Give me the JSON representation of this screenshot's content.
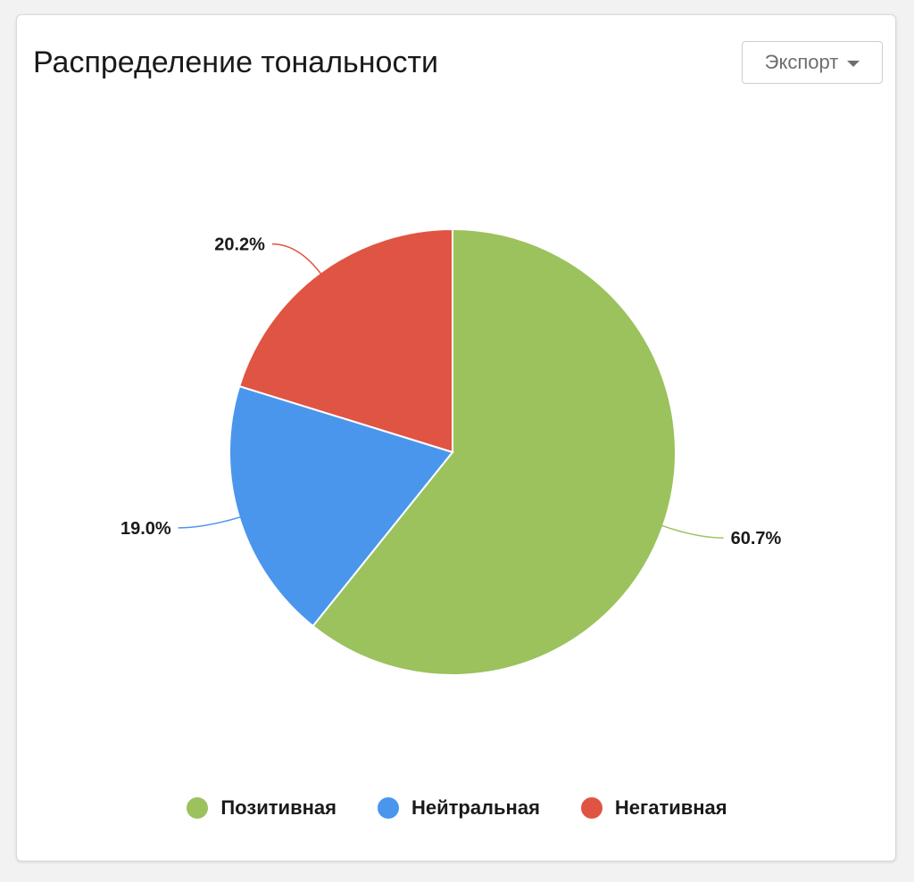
{
  "card": {
    "title": "Распределение тональности",
    "export_label": "Экспорт",
    "export_icon": "chevron-down-icon"
  },
  "chart_data": {
    "type": "pie",
    "title": "Распределение тональности",
    "categories": [
      "Позитивная",
      "Нейтральная",
      "Негативная"
    ],
    "values": [
      60.7,
      19.0,
      20.2
    ],
    "labels": [
      "60.7%",
      "19.0%",
      "20.2%"
    ],
    "colors": [
      "#9bc25d",
      "#4a96ec",
      "#e05443"
    ],
    "start": "12 o'clock",
    "direction": "clockwise",
    "legend_position": "bottom"
  },
  "legend": {
    "items": [
      {
        "label": "Позитивная",
        "color": "#9bc25d"
      },
      {
        "label": "Нейтральная",
        "color": "#4a96ec"
      },
      {
        "label": "Негативная",
        "color": "#e05443"
      }
    ]
  }
}
